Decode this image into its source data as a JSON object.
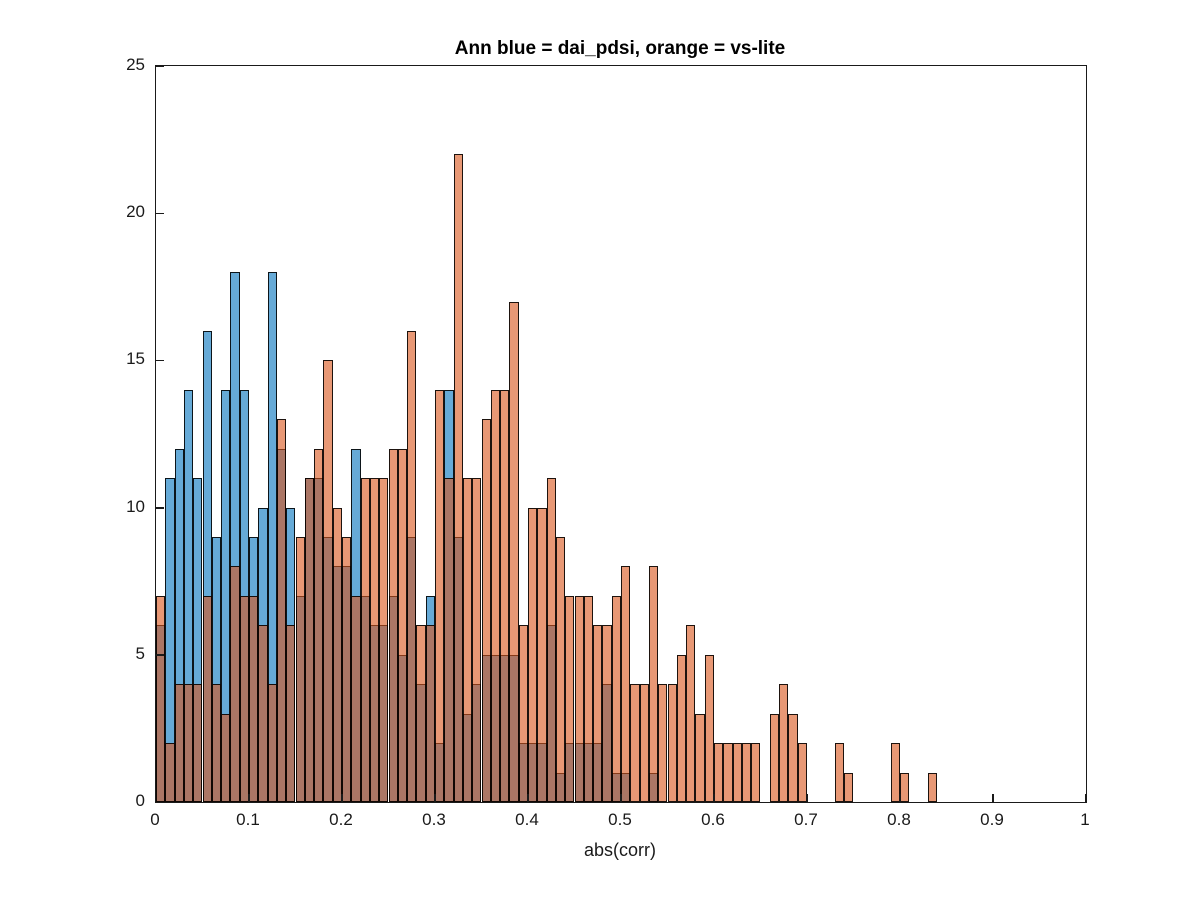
{
  "title": "Ann blue = dai_pdsi, orange = vs-lite",
  "xlabel": "abs(corr)",
  "colors": {
    "blue_face": "rgba(0,114,189,0.60)",
    "orange_face": "rgba(217,83,25,0.60)",
    "blue_solid": "#0072BD",
    "orange_solid": "#D95319",
    "edge": "#000000",
    "axis": "#1a1a1a"
  },
  "chart_data": {
    "type": "bar",
    "subtype": "overlaid-histogram",
    "title": "Ann blue = dai_pdsi, orange = vs-lite",
    "xlabel": "abs(corr)",
    "ylabel": "",
    "bin_width": 0.01,
    "bin_start": 0.0,
    "xlim": [
      0,
      1
    ],
    "ylim": [
      0,
      25
    ],
    "x_tick_labels": [
      "0",
      "0.1",
      "0.2",
      "0.3",
      "0.4",
      "0.5",
      "0.6",
      "0.7",
      "0.8",
      "0.9",
      "1"
    ],
    "x_tick_values": [
      0,
      0.1,
      0.2,
      0.3,
      0.4,
      0.5,
      0.6,
      0.7,
      0.8,
      0.9,
      1
    ],
    "y_tick_labels": [
      "0",
      "5",
      "10",
      "15",
      "20",
      "25"
    ],
    "y_tick_values": [
      0,
      5,
      10,
      15,
      20,
      25
    ],
    "grid": false,
    "legend_position": "none (legend encoded in title)",
    "series": [
      {
        "name": "dai_pdsi",
        "color": "#0072BD",
        "draw_order": "below",
        "values": [
          6,
          11,
          12,
          14,
          11,
          16,
          9,
          14,
          18,
          14,
          9,
          10,
          18,
          12,
          10,
          7,
          11,
          11,
          9,
          8,
          8,
          12,
          7,
          6,
          6,
          7,
          5,
          9,
          4,
          7,
          2,
          14,
          9,
          3,
          4,
          5,
          5,
          5,
          5,
          2,
          2,
          2,
          6,
          1,
          2,
          2,
          2,
          2,
          4,
          1,
          1,
          0,
          0,
          1,
          0,
          0,
          0,
          0,
          0,
          0,
          0,
          0,
          0,
          0,
          0,
          0,
          0,
          0,
          0,
          0,
          0,
          0,
          0,
          0,
          0,
          0,
          0,
          0,
          0,
          0,
          0,
          0,
          0,
          0,
          0
        ]
      },
      {
        "name": "vs-lite",
        "color": "#D95319",
        "draw_order": "above",
        "values": [
          7,
          2,
          4,
          4,
          4,
          7,
          4,
          3,
          8,
          7,
          7,
          6,
          4,
          13,
          6,
          9,
          11,
          12,
          15,
          10,
          9,
          7,
          11,
          11,
          11,
          12,
          12,
          16,
          6,
          6,
          14,
          11,
          22,
          11,
          11,
          13,
          14,
          14,
          17,
          6,
          10,
          10,
          11,
          9,
          7,
          7,
          7,
          6,
          6,
          7,
          8,
          4,
          4,
          8,
          4,
          4,
          5,
          6,
          3,
          5,
          2,
          2,
          2,
          2,
          2,
          0,
          3,
          4,
          3,
          2,
          0,
          0,
          0,
          2,
          1,
          0,
          0,
          0,
          0,
          2,
          1,
          0,
          0,
          1,
          0
        ]
      }
    ]
  }
}
